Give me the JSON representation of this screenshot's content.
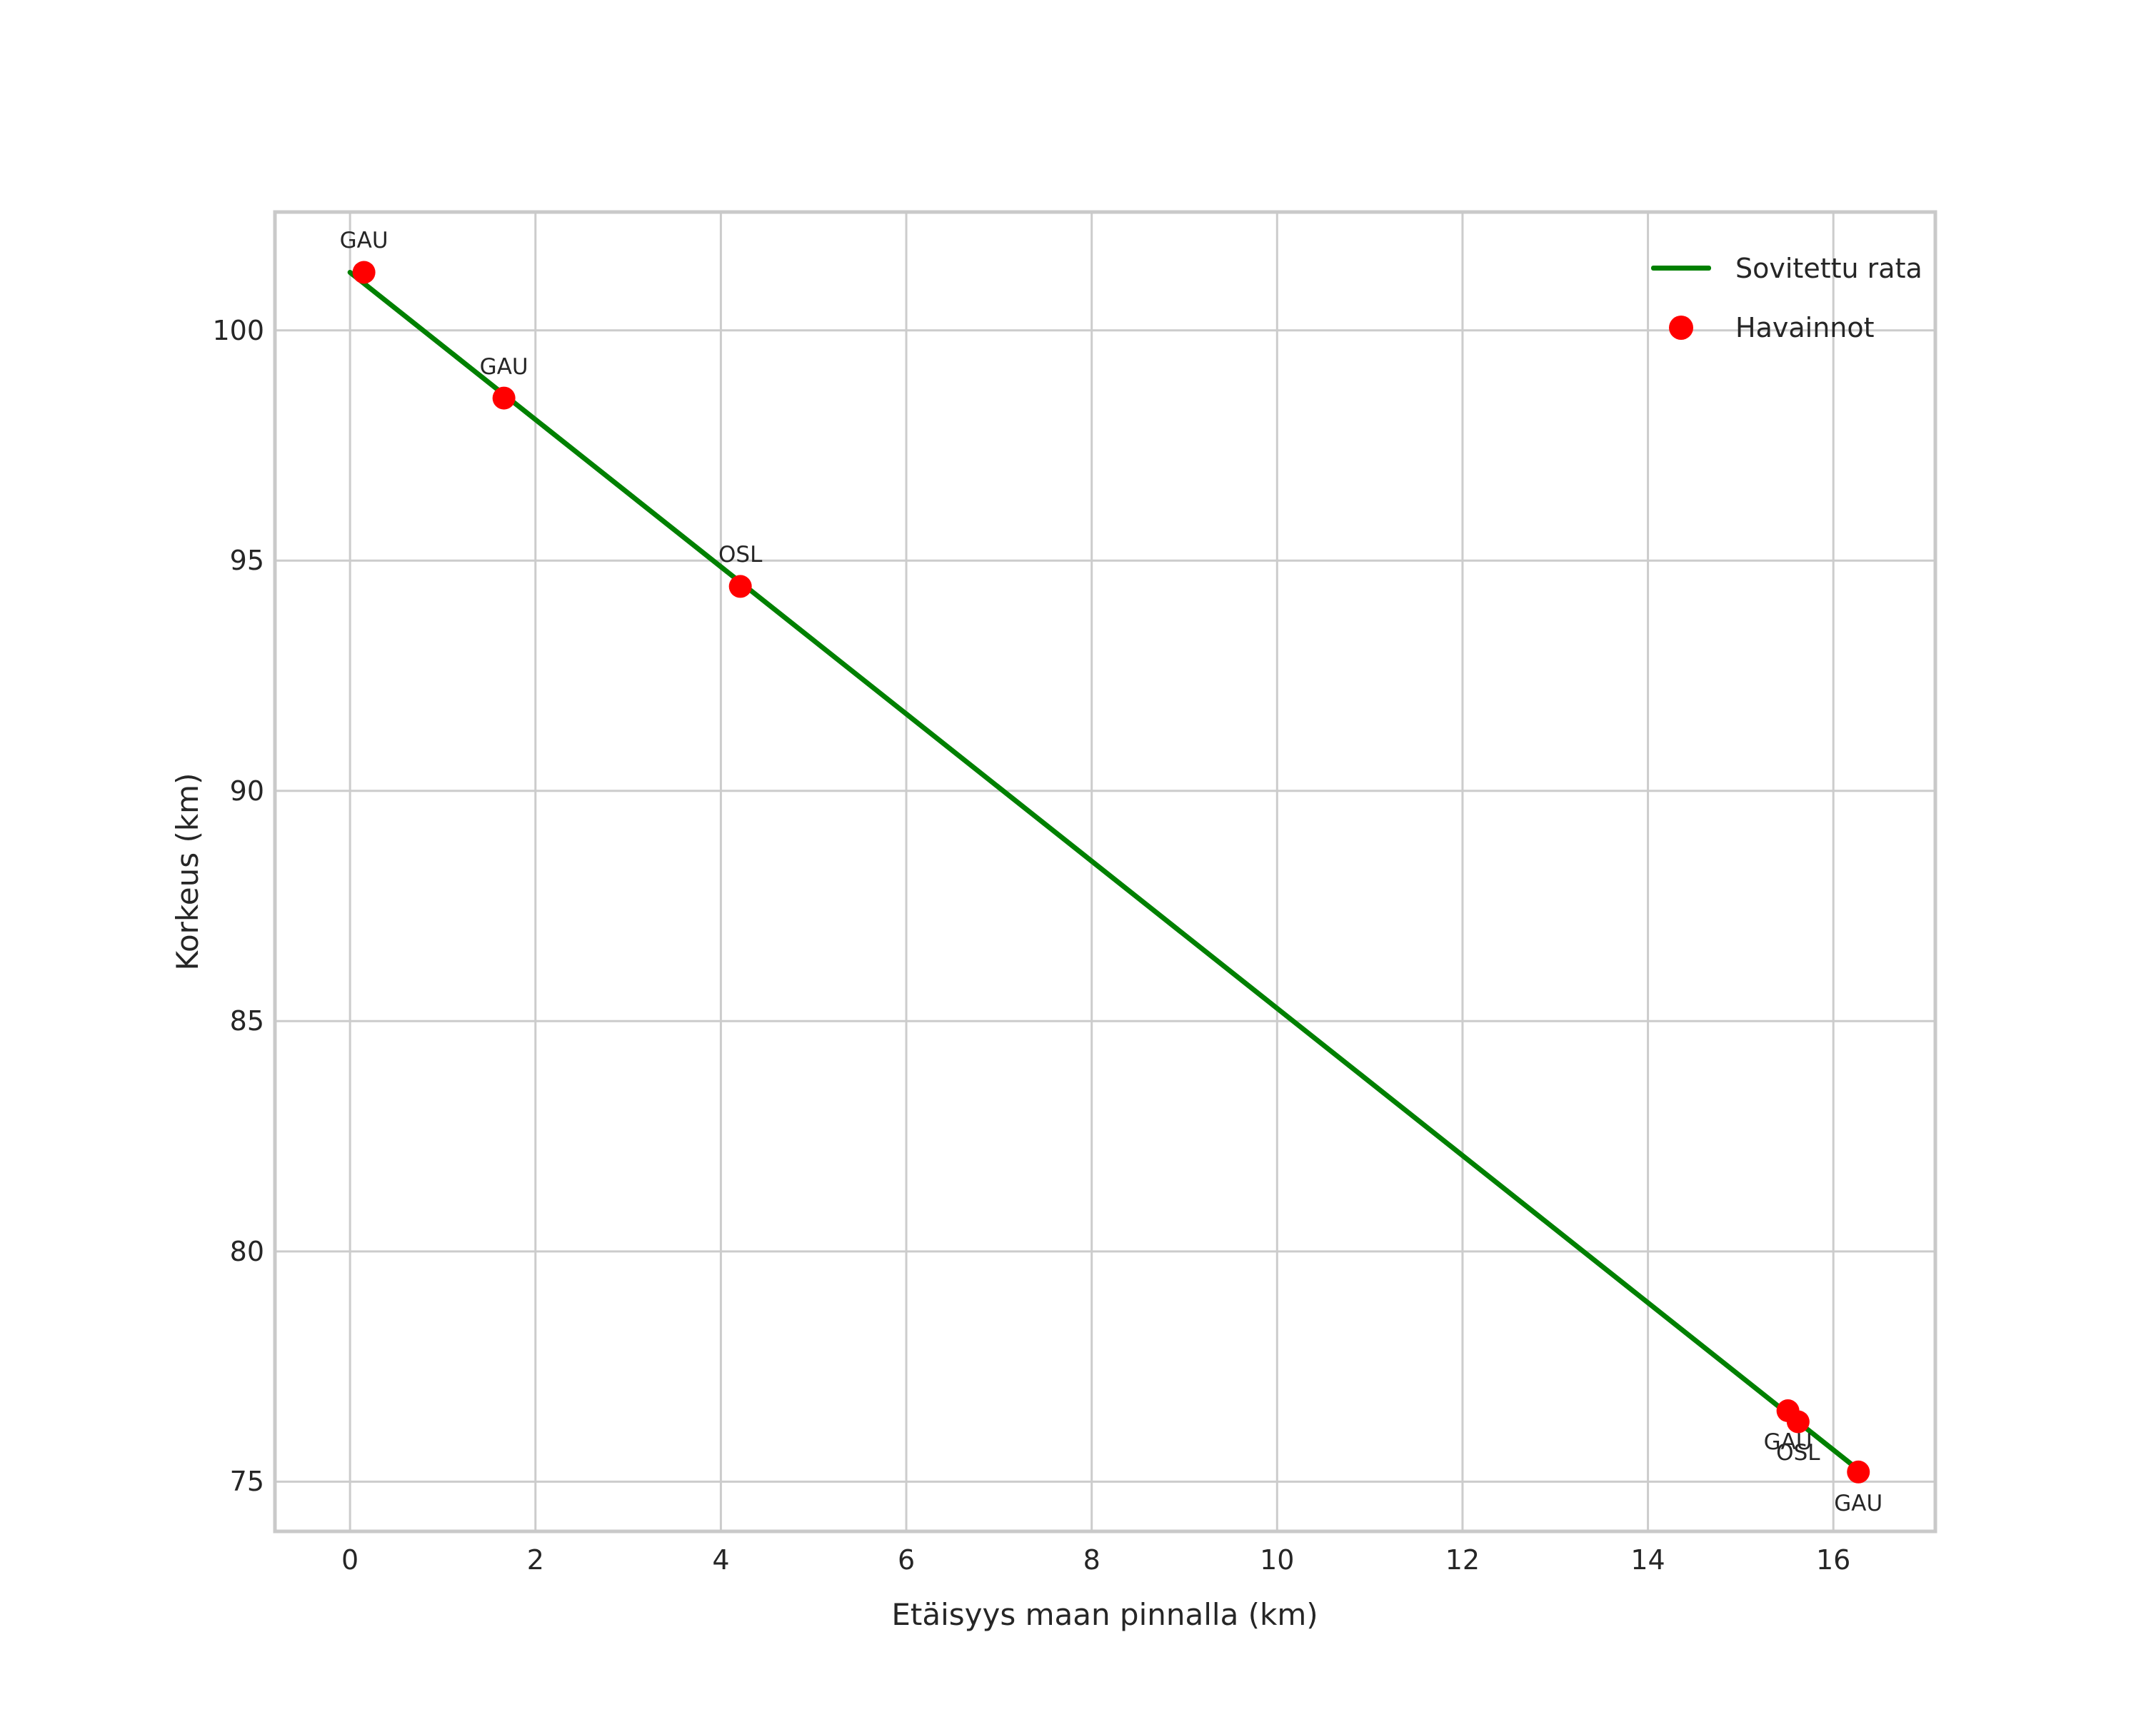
{
  "figure": {
    "background": "#ffffff",
    "text_color": "#262626",
    "grid_color": "#cccccc",
    "spine_color": "#c9c9c9"
  },
  "chart_data": {
    "type": "scatter",
    "title": "",
    "xlabel": "Etäisyys maan pinnalla (km)",
    "ylabel": "Korkeus (km)",
    "xlim": [
      -0.81,
      17.1
    ],
    "ylim": [
      73.92,
      102.57
    ],
    "x_ticks": [
      0,
      2,
      4,
      6,
      8,
      10,
      12,
      14,
      16
    ],
    "y_ticks": [
      75,
      80,
      85,
      90,
      95,
      100
    ],
    "grid": true,
    "legend_position": "upper right",
    "series": [
      {
        "name": "Sovitettu rata",
        "type": "line",
        "color": "#008000",
        "x": [
          0.0,
          16.3
        ],
        "y": [
          101.26,
          75.21
        ]
      },
      {
        "name": "Havainnot",
        "type": "scatter",
        "color": "#ff0000",
        "points": [
          {
            "x": 0.15,
            "y": 101.26,
            "label": "GAU",
            "label_side": "above"
          },
          {
            "x": 1.66,
            "y": 98.53,
            "label": "GAU",
            "label_side": "above"
          },
          {
            "x": 4.21,
            "y": 94.44,
            "label": "OSL",
            "label_side": "above"
          },
          {
            "x": 15.51,
            "y": 76.54,
            "label": "GAU",
            "label_side": "below"
          },
          {
            "x": 15.62,
            "y": 76.3,
            "label": "OSL",
            "label_side": "below"
          },
          {
            "x": 16.27,
            "y": 75.21,
            "label": "GAU",
            "label_side": "below"
          }
        ]
      }
    ]
  }
}
